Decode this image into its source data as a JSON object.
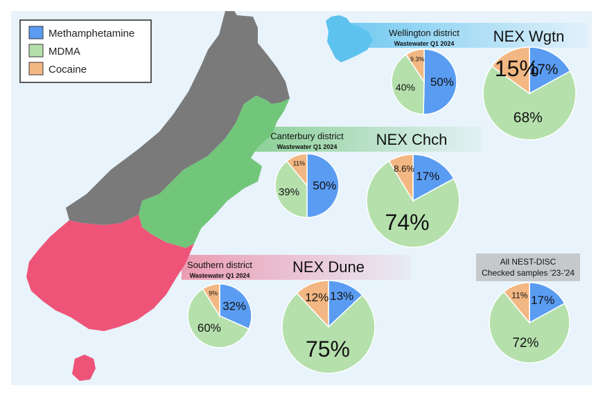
{
  "colors": {
    "methamphetamine": "#5a9cf2",
    "mdma": "#b5e0ac",
    "cocaine": "#f2b782",
    "panel_bg": "#e8f3fb",
    "land_gray": "#7a7a7a",
    "land_green": "#72c67a",
    "land_red": "#ee5478",
    "land_blue": "#5dc2ee"
  },
  "legend": {
    "items": [
      {
        "label": "Methamphetamine",
        "color": "#5a9cf2"
      },
      {
        "label": "MDMA",
        "color": "#b5e0ac"
      },
      {
        "label": "Cocaine",
        "color": "#f2b782"
      }
    ]
  },
  "banners": {
    "wellington": {
      "title": "Wellington district",
      "subtitle": "Wastewater Q1 2024",
      "nex": "NEX Wgtn"
    },
    "canterbury": {
      "title": "Canterbury district",
      "subtitle": "Wastewater Q1 2024",
      "nex": "NEX Chch"
    },
    "southern": {
      "title": "Southern district",
      "subtitle": "Wastewater Q1 2024",
      "nex": "NEX Dune"
    },
    "nest": {
      "line1": "All NEST-DISC",
      "line2": "Checked samples '23-'24"
    }
  },
  "chart_data": [
    {
      "type": "pie",
      "title": "Wellington district Wastewater Q1 2024",
      "categories": [
        "Methamphetamine",
        "MDMA",
        "Cocaine"
      ],
      "values": [
        50,
        40,
        9.3
      ],
      "labels": [
        "50%",
        "40%",
        "9.3%"
      ]
    },
    {
      "type": "pie",
      "title": "NEX Wgtn",
      "categories": [
        "Methamphetamine",
        "MDMA",
        "Cocaine"
      ],
      "values": [
        17,
        68,
        15
      ],
      "labels": [
        "17%",
        "68%",
        "15%"
      ]
    },
    {
      "type": "pie",
      "title": "Canterbury district Wastewater Q1 2024",
      "categories": [
        "Methamphetamine",
        "MDMA",
        "Cocaine"
      ],
      "values": [
        50,
        39,
        11
      ],
      "labels": [
        "50%",
        "39%",
        "11%"
      ]
    },
    {
      "type": "pie",
      "title": "NEX Chch",
      "categories": [
        "Methamphetamine",
        "MDMA",
        "Cocaine"
      ],
      "values": [
        17,
        74,
        8.6
      ],
      "labels": [
        "17%",
        "74%",
        "8.6%"
      ]
    },
    {
      "type": "pie",
      "title": "Southern district Wastewater Q1 2024",
      "categories": [
        "Methamphetamine",
        "MDMA",
        "Cocaine"
      ],
      "values": [
        32,
        60,
        9
      ],
      "labels": [
        "32%",
        "60%",
        "9%"
      ]
    },
    {
      "type": "pie",
      "title": "NEX Dune",
      "categories": [
        "Methamphetamine",
        "MDMA",
        "Cocaine"
      ],
      "values": [
        13,
        75,
        12
      ],
      "labels": [
        "13%",
        "75%",
        "12%"
      ]
    },
    {
      "type": "pie",
      "title": "All NEST-DISC Checked samples '23-'24",
      "categories": [
        "Methamphetamine",
        "MDMA",
        "Cocaine"
      ],
      "values": [
        17,
        72,
        11
      ],
      "labels": [
        "17%",
        "72%",
        "11%"
      ]
    }
  ]
}
